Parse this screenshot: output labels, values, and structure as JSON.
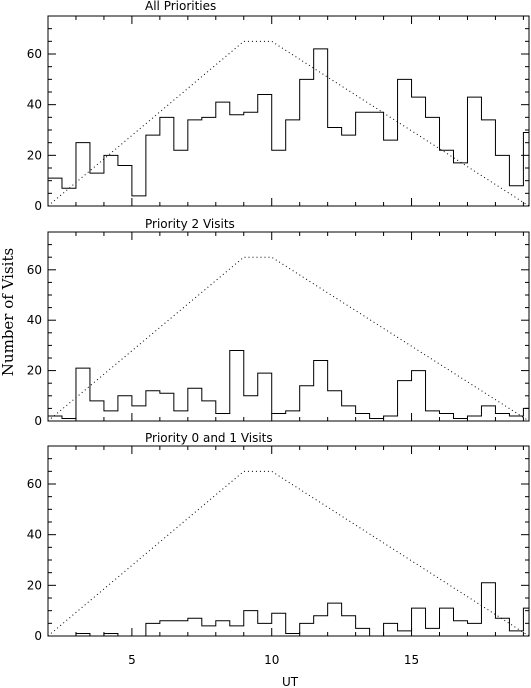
{
  "figure": {
    "ylabel": "Number of Visits",
    "xlabel": "UT"
  },
  "chart_data": [
    {
      "type": "step",
      "title": "All Priorities",
      "xlim": [
        2.0,
        19.2
      ],
      "ylim": [
        0,
        75
      ],
      "xticks": [
        5,
        10,
        15
      ],
      "yticks": [
        0,
        20,
        40,
        60
      ],
      "bin_width": 0.5,
      "x": [
        2.0,
        2.5,
        3.0,
        3.5,
        4.0,
        4.5,
        5.0,
        5.5,
        6.0,
        6.5,
        7.0,
        7.5,
        8.0,
        8.5,
        9.0,
        9.5,
        10.0,
        10.5,
        11.0,
        11.5,
        12.0,
        12.5,
        13.0,
        13.5,
        14.0,
        14.5,
        15.0,
        15.5,
        16.0,
        16.5,
        17.0,
        17.5,
        18.0,
        18.5,
        19.0
      ],
      "series": [
        {
          "values": [
            11,
            7,
            25,
            13,
            20,
            16,
            4,
            28,
            35,
            22,
            34,
            35,
            41,
            36,
            37,
            44,
            22,
            34,
            50,
            62,
            31,
            28,
            37,
            37,
            26,
            50,
            43,
            35,
            22,
            17,
            43,
            34,
            20,
            8,
            29
          ]
        },
        {
          "style": "dotted",
          "x": [
            2.0,
            9.0,
            10.0,
            19.2
          ],
          "values": [
            0,
            65,
            65,
            0
          ]
        }
      ]
    },
    {
      "type": "step",
      "title": "Priority 2 Visits",
      "xlim": [
        2.0,
        19.2
      ],
      "ylim": [
        0,
        75
      ],
      "xticks": [
        5,
        10,
        15
      ],
      "yticks": [
        0,
        20,
        40,
        60
      ],
      "bin_width": 0.5,
      "x": [
        2.0,
        2.5,
        3.0,
        3.5,
        4.0,
        4.5,
        5.0,
        5.5,
        6.0,
        6.5,
        7.0,
        7.5,
        8.0,
        8.5,
        9.0,
        9.5,
        10.0,
        10.5,
        11.0,
        11.5,
        12.0,
        12.5,
        13.0,
        13.5,
        14.0,
        14.5,
        15.0,
        15.5,
        16.0,
        16.5,
        17.0,
        17.5,
        18.0,
        18.5,
        19.0
      ],
      "series": [
        {
          "values": [
            2,
            1,
            21,
            8,
            4,
            10,
            6,
            12,
            11,
            4,
            13,
            8,
            3,
            28,
            10,
            19,
            3,
            4,
            14,
            24,
            12,
            6,
            3,
            1,
            2,
            16,
            20,
            4,
            3,
            1,
            2,
            6,
            3,
            2,
            5
          ]
        },
        {
          "style": "dotted",
          "x": [
            2.0,
            9.0,
            10.0,
            19.2
          ],
          "values": [
            0,
            65,
            65,
            0
          ]
        }
      ]
    },
    {
      "type": "step",
      "title": "Priority 0 and 1 Visits",
      "xlim": [
        2.0,
        19.2
      ],
      "ylim": [
        0,
        75
      ],
      "xticks": [
        5,
        10,
        15
      ],
      "yticks": [
        0,
        20,
        40,
        60
      ],
      "bin_width": 0.5,
      "x": [
        2.0,
        2.5,
        3.0,
        3.5,
        4.0,
        4.5,
        5.0,
        5.5,
        6.0,
        6.5,
        7.0,
        7.5,
        8.0,
        8.5,
        9.0,
        9.5,
        10.0,
        10.5,
        11.0,
        11.5,
        12.0,
        12.5,
        13.0,
        13.5,
        14.0,
        14.5,
        15.0,
        15.5,
        16.0,
        16.5,
        17.0,
        17.5,
        18.0,
        18.5,
        19.0
      ],
      "series": [
        {
          "values": [
            0,
            0,
            1,
            0,
            1,
            0,
            0,
            5,
            6,
            6,
            7,
            4,
            6,
            4,
            10,
            5,
            9,
            1,
            5,
            8,
            13,
            8,
            3,
            0,
            5,
            2,
            11,
            3,
            11,
            6,
            5,
            21,
            7,
            2,
            11
          ]
        },
        {
          "style": "dotted",
          "x": [
            2.0,
            9.0,
            10.0,
            19.2
          ],
          "values": [
            0,
            65,
            65,
            0
          ]
        }
      ]
    }
  ]
}
